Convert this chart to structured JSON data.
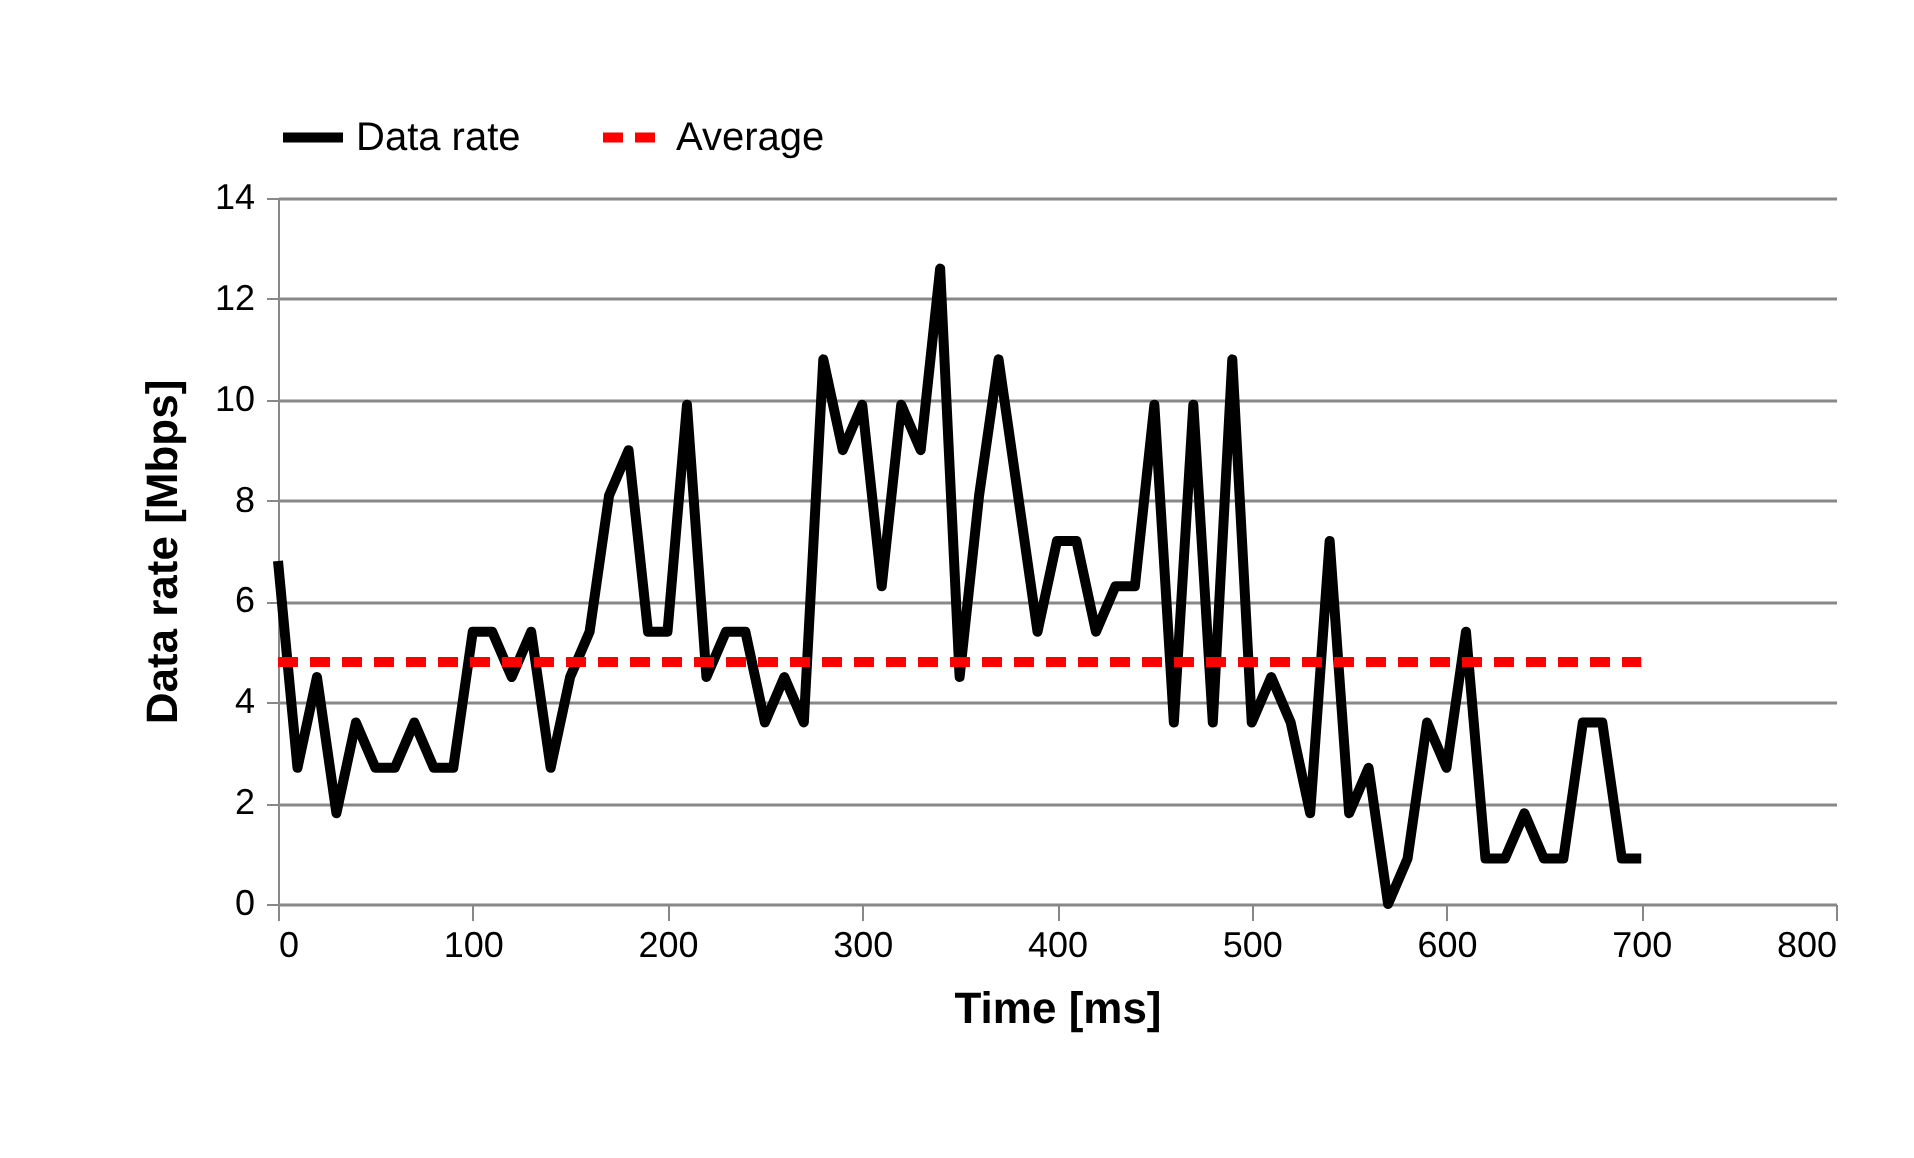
{
  "chart_data": {
    "type": "line",
    "xlabel": "Time [ms]",
    "ylabel": "Data rate [Mbps]",
    "x": [
      0,
      10,
      20,
      30,
      40,
      50,
      60,
      70,
      80,
      90,
      100,
      110,
      120,
      130,
      140,
      150,
      160,
      170,
      180,
      190,
      200,
      210,
      220,
      230,
      240,
      250,
      260,
      270,
      280,
      290,
      300,
      310,
      320,
      330,
      340,
      350,
      360,
      370,
      380,
      390,
      400,
      410,
      420,
      430,
      440,
      450,
      460,
      470,
      480,
      490,
      500,
      510,
      520,
      530,
      540,
      550,
      560,
      570,
      580,
      590,
      600,
      610,
      620,
      630,
      640,
      650,
      660,
      670,
      680,
      690,
      700
    ],
    "series": [
      {
        "name": "Data rate",
        "color": "#000000",
        "line_style": "solid",
        "values": [
          6.8,
          2.7,
          4.5,
          1.8,
          3.6,
          2.7,
          2.7,
          3.6,
          2.7,
          2.7,
          5.4,
          5.4,
          4.5,
          5.4,
          2.7,
          4.5,
          5.4,
          8.1,
          9.0,
          5.4,
          5.4,
          9.9,
          4.5,
          5.4,
          5.4,
          3.6,
          4.5,
          3.6,
          10.8,
          9.0,
          9.9,
          6.3,
          9.9,
          9.0,
          12.6,
          4.5,
          8.1,
          10.8,
          8.1,
          5.4,
          7.2,
          7.2,
          5.4,
          6.3,
          6.3,
          9.9,
          3.6,
          9.9,
          3.6,
          10.8,
          3.6,
          4.5,
          3.6,
          1.8,
          7.2,
          1.8,
          2.7,
          0,
          0.9,
          3.6,
          2.7,
          5.4,
          0.9,
          0.9,
          1.8,
          0.9,
          0.9,
          3.6,
          3.6,
          0.9,
          0.9
        ]
      },
      {
        "name": "Average",
        "color": "#ff0000",
        "line_style": "dashed",
        "x": [
          0,
          700
        ],
        "values": [
          4.8,
          4.8
        ]
      }
    ],
    "xlim": [
      0,
      800
    ],
    "xticks": [
      0,
      100,
      200,
      300,
      400,
      500,
      600,
      700,
      800
    ],
    "ylim": [
      0,
      14
    ],
    "yticks": [
      0,
      2,
      4,
      6,
      8,
      10,
      12,
      14
    ],
    "grid": "y",
    "legend": "top"
  }
}
